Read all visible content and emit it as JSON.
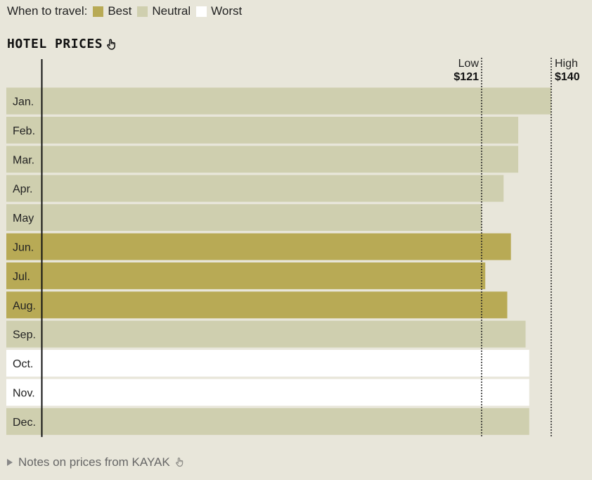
{
  "legend": {
    "label": "When to travel:",
    "items": [
      {
        "label": "Best",
        "color": "#b8aa55"
      },
      {
        "label": "Neutral",
        "color": "#cfcfaf"
      },
      {
        "label": "Worst",
        "color": "#ffffff"
      }
    ]
  },
  "chart_data": {
    "type": "bar",
    "orientation": "horizontal",
    "title": "HOTEL PRICES",
    "categories": [
      "Jan.",
      "Feb.",
      "Mar.",
      "Apr.",
      "May",
      "Jun.",
      "Jul.",
      "Aug.",
      "Sep.",
      "Oct.",
      "Nov.",
      "Dec."
    ],
    "values": [
      140,
      131,
      131,
      127,
      121,
      129,
      122,
      128,
      133,
      134,
      134,
      134
    ],
    "ratings": [
      "Neutral",
      "Neutral",
      "Neutral",
      "Neutral",
      "Neutral",
      "Best",
      "Best",
      "Best",
      "Neutral",
      "Worst",
      "Worst",
      "Neutral"
    ],
    "reference_lines": [
      {
        "label": "Low",
        "value_label": "$121",
        "value": 121
      },
      {
        "label": "High",
        "value_label": "$140",
        "value": 140
      }
    ]
  },
  "notes": {
    "label": "Notes on prices from KAYAK"
  }
}
